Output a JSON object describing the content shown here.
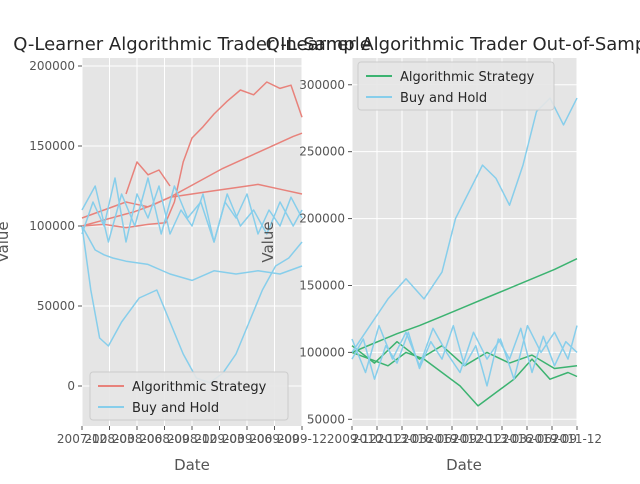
{
  "chart_data": [
    {
      "type": "line",
      "title": "Q-Learner Algorithmic Trader In-Sample",
      "xlabel": "Date",
      "ylabel": "Value",
      "x_tick_labels": [
        "2007-12",
        "2008-03",
        "2008-06",
        "2008-09",
        "2008-12",
        "2009-03",
        "2009-06",
        "2009-09",
        "2009-12"
      ],
      "y_ticks": [
        0,
        50000,
        100000,
        150000,
        200000
      ],
      "y_tick_labels": [
        "0",
        "50000",
        "100000",
        "150000",
        "200000"
      ],
      "ylim": [
        -25000,
        205000
      ],
      "grid": true,
      "legend_position": "lower-left",
      "series": [
        {
          "name": "Algorithmic Strategy",
          "color": "#e8827b",
          "paths": [
            {
              "x": [
                0,
                0.08,
                0.16,
                0.24,
                0.32,
                0.4,
                0.48,
                0.56,
                0.64,
                0.72,
                0.8,
                0.88,
                0.96,
                1.0
              ],
              "y": [
                100000,
                103000,
                106000,
                109000,
                113000,
                118000,
                124000,
                130000,
                136000,
                141000,
                146000,
                151000,
                156000,
                158000
              ]
            },
            {
              "x": [
                0,
                0.1,
                0.2,
                0.3,
                0.38,
                0.42,
                0.46,
                0.5,
                0.55,
                0.6,
                0.66,
                0.72,
                0.78,
                0.84,
                0.9,
                0.95,
                1.0
              ],
              "y": [
                100000,
                101000,
                99000,
                101000,
                102000,
                115000,
                140000,
                155000,
                162000,
                170000,
                178000,
                185000,
                182000,
                190000,
                186000,
                188000,
                168000
              ]
            },
            {
              "x": [
                0,
                0.1,
                0.2,
                0.3,
                0.4,
                0.5,
                0.6,
                0.7,
                0.8,
                0.9,
                1.0
              ],
              "y": [
                105000,
                110000,
                115000,
                112000,
                118000,
                120000,
                122000,
                124000,
                126000,
                123000,
                120000
              ]
            },
            {
              "x": [
                0.2,
                0.25,
                0.3,
                0.35,
                0.4
              ],
              "y": [
                120000,
                140000,
                132000,
                135000,
                125000
              ]
            }
          ]
        },
        {
          "name": "Buy and Hold",
          "color": "#87ceeb",
          "paths": [
            {
              "x": [
                0,
                0.06,
                0.1,
                0.14,
                0.2,
                0.3,
                0.4,
                0.5,
                0.6,
                0.7,
                0.8,
                0.9,
                1.0
              ],
              "y": [
                100000,
                85000,
                82000,
                80000,
                78000,
                76000,
                70000,
                66000,
                72000,
                70000,
                72000,
                70000,
                75000
              ]
            },
            {
              "x": [
                0,
                0.04,
                0.08,
                0.12,
                0.18,
                0.26,
                0.34,
                0.4,
                0.46,
                0.52,
                0.58,
                0.64,
                0.7,
                0.76,
                0.82,
                0.88,
                0.94,
                1.0
              ],
              "y": [
                100000,
                60000,
                30000,
                25000,
                40000,
                55000,
                60000,
                40000,
                20000,
                5000,
                2000,
                8000,
                20000,
                40000,
                60000,
                75000,
                80000,
                90000
              ]
            },
            {
              "x": [
                0,
                0.06,
                0.12,
                0.18,
                0.24,
                0.3,
                0.36,
                0.42,
                0.48,
                0.54,
                0.6,
                0.66,
                0.72,
                0.78,
                0.84,
                0.9,
                0.96,
                1.0
              ],
              "y": [
                110000,
                125000,
                90000,
                120000,
                100000,
                130000,
                95000,
                125000,
                105000,
                115000,
                90000,
                120000,
                100000,
                110000,
                95000,
                115000,
                100000,
                110000
              ]
            },
            {
              "x": [
                0,
                0.05,
                0.1,
                0.15,
                0.2,
                0.25,
                0.3,
                0.35,
                0.4,
                0.45,
                0.5,
                0.55,
                0.6,
                0.65,
                0.7,
                0.75,
                0.8,
                0.85,
                0.9,
                0.95,
                1.0
              ],
              "y": [
                95000,
                115000,
                100000,
                130000,
                90000,
                120000,
                105000,
                125000,
                95000,
                110000,
                100000,
                120000,
                90000,
                115000,
                105000,
                120000,
                95000,
                110000,
                100000,
                118000,
                105000
              ]
            }
          ]
        }
      ]
    },
    {
      "type": "line",
      "title": "Q-Learner Algorithmic Trader Out-of-Sample",
      "xlabel": "Date",
      "ylabel": "Value",
      "x_tick_labels": [
        "2009-12",
        "2010-12",
        "2013-03",
        "2016-06",
        "2019-09",
        "2012-12",
        "2013-03",
        "2016-06",
        "2019-09",
        "2011-12"
      ],
      "y_ticks": [
        50000,
        100000,
        150000,
        200000,
        250000,
        300000
      ],
      "y_tick_labels": [
        "50000",
        "100000",
        "150000",
        "200000",
        "250000",
        "300000"
      ],
      "ylim": [
        45000,
        320000
      ],
      "grid": true,
      "legend_position": "top-left",
      "series": [
        {
          "name": "Algorithmic Strategy",
          "color": "#3cb371",
          "paths": [
            {
              "x": [
                0,
                0.1,
                0.2,
                0.3,
                0.4,
                0.5,
                0.6,
                0.7,
                0.8,
                0.9,
                1.0
              ],
              "y": [
                100000,
                107000,
                114000,
                120000,
                127000,
                134000,
                141000,
                148000,
                155000,
                162000,
                170000
              ]
            },
            {
              "x": [
                0,
                0.08,
                0.16,
                0.24,
                0.32,
                0.4,
                0.48,
                0.56,
                0.64,
                0.72,
                0.8,
                0.88,
                0.96,
                1.0
              ],
              "y": [
                100000,
                95000,
                90000,
                100000,
                95000,
                85000,
                75000,
                60000,
                70000,
                80000,
                95000,
                80000,
                85000,
                82000
              ]
            },
            {
              "x": [
                0,
                0.1,
                0.2,
                0.3,
                0.4,
                0.5,
                0.6,
                0.7,
                0.8,
                0.9,
                1.0
              ],
              "y": [
                105000,
                92000,
                108000,
                95000,
                105000,
                90000,
                100000,
                92000,
                98000,
                88000,
                90000
              ]
            }
          ]
        },
        {
          "name": "Buy and Hold",
          "color": "#87ceeb",
          "paths": [
            {
              "x": [
                0,
                0.08,
                0.16,
                0.24,
                0.32,
                0.4,
                0.46,
                0.52,
                0.58,
                0.64,
                0.7,
                0.76,
                0.82,
                0.88,
                0.94,
                1.0
              ],
              "y": [
                100000,
                120000,
                140000,
                155000,
                140000,
                160000,
                200000,
                220000,
                240000,
                230000,
                210000,
                240000,
                280000,
                290000,
                270000,
                290000
              ]
            },
            {
              "x": [
                0,
                0.06,
                0.12,
                0.18,
                0.24,
                0.3,
                0.36,
                0.42,
                0.48,
                0.54,
                0.6,
                0.66,
                0.72,
                0.78,
                0.84,
                0.9,
                0.96,
                1.0
              ],
              "y": [
                110000,
                85000,
                120000,
                95000,
                115000,
                90000,
                118000,
                100000,
                85000,
                115000,
                95000,
                110000,
                80000,
                120000,
                100000,
                115000,
                95000,
                120000
              ]
            },
            {
              "x": [
                0,
                0.05,
                0.1,
                0.15,
                0.2,
                0.25,
                0.3,
                0.35,
                0.4,
                0.45,
                0.5,
                0.55,
                0.6,
                0.65,
                0.7,
                0.75,
                0.8,
                0.85,
                0.9,
                0.95,
                1.0
              ],
              "y": [
                95000,
                110000,
                80000,
                105000,
                92000,
                115000,
                88000,
                108000,
                95000,
                120000,
                90000,
                105000,
                75000,
                110000,
                95000,
                118000,
                85000,
                112000,
                90000,
                108000,
                100000
              ]
            }
          ]
        }
      ]
    }
  ]
}
